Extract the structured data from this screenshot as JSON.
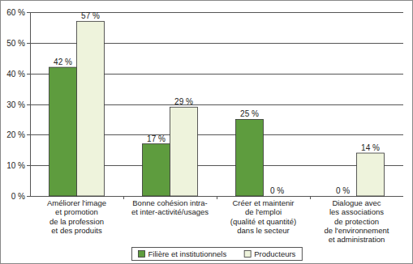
{
  "chart_data": {
    "type": "bar",
    "categories": [
      "Améliorer l'image\net promotion\nde la profession\net des produits",
      "Bonne cohésion intra-\net inter-activité/usages",
      "Créer et maintenir\nde l'emploi\n(qualité et quantité)\ndans le secteur",
      "Dialogue avec\nles associations\nde protection\nde l'environnement\net administration"
    ],
    "series": [
      {
        "name": "Filière et institutionnels",
        "color": "#5e9c3e",
        "values": [
          42,
          17,
          25,
          0
        ],
        "value_labels": [
          "42 %",
          "17 %",
          "25 %",
          "0 %"
        ]
      },
      {
        "name": "Producteurs",
        "color": "#eef3dc",
        "values": [
          57,
          29,
          0,
          14
        ],
        "value_labels": [
          "57 %",
          "29 %",
          "0 %",
          "14 %"
        ]
      }
    ],
    "ylim": [
      0,
      60
    ],
    "yticks": [
      {
        "value": 0,
        "label": "0 %"
      },
      {
        "value": 10,
        "label": "10 %"
      },
      {
        "value": 20,
        "label": "20 %"
      },
      {
        "value": 30,
        "label": "30 %"
      },
      {
        "value": 40,
        "label": "40 %"
      },
      {
        "value": 50,
        "label": "50 %"
      },
      {
        "value": 60,
        "label": "60 %"
      }
    ],
    "grid": true,
    "data_labels": true,
    "legend": "bottom"
  }
}
